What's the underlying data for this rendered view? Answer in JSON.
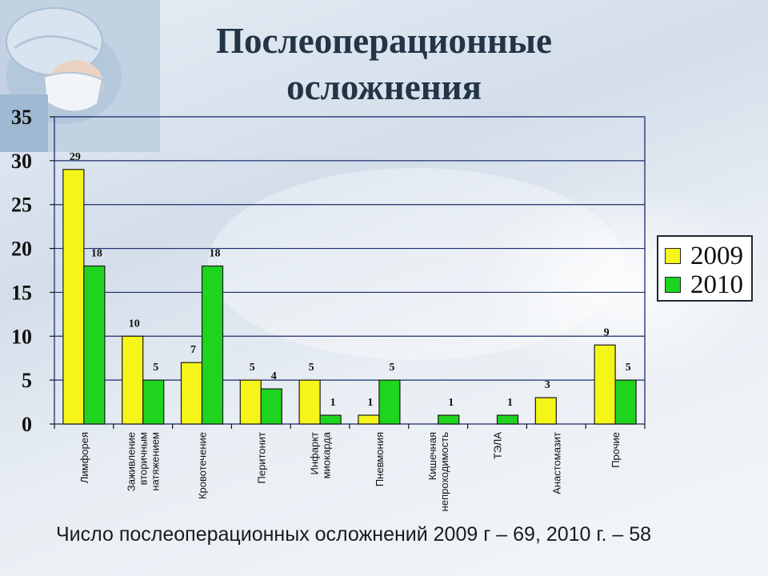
{
  "title_line1": "Послеоперационные",
  "title_line2": "осложнения",
  "footer": "Число послеоперационных осложнений 2009 г – 69, 2010 г. – 58",
  "colors": {
    "y2009": "#f5f51a",
    "y2010": "#1ed41e",
    "grid": "#1c2c6e",
    "axis": "#111111"
  },
  "chart_data": {
    "type": "bar",
    "categories": [
      "Лимфорея",
      "Заживление вторичным натяжением",
      "Кровотечение",
      "Перитонит",
      "Инфаркт миокарда",
      "Пневмония",
      "Кишечная непроходимость",
      "ТЭЛА",
      "Анастомазит",
      "Прочие"
    ],
    "category_lines": [
      [
        "Лимфорея"
      ],
      [
        "Заживление",
        "вторичным",
        "натяжением"
      ],
      [
        "Кровотечение"
      ],
      [
        "Перитонит"
      ],
      [
        "Инфаркт",
        "миокарда"
      ],
      [
        "Пневмония"
      ],
      [
        "Кишечная",
        "непроходимость"
      ],
      [
        "ТЭЛА"
      ],
      [
        "Анастомазит"
      ],
      [
        "Прочие"
      ]
    ],
    "series": [
      {
        "name": "2009",
        "values": [
          29,
          10,
          7,
          5,
          5,
          1,
          null,
          null,
          3,
          9
        ]
      },
      {
        "name": "2010",
        "values": [
          18,
          5,
          18,
          4,
          1,
          5,
          1,
          1,
          null,
          5
        ]
      }
    ],
    "ylim": [
      0,
      35
    ],
    "yticks": [
      0,
      5,
      10,
      15,
      20,
      25,
      30,
      35
    ],
    "grid": true,
    "legend": "right"
  }
}
